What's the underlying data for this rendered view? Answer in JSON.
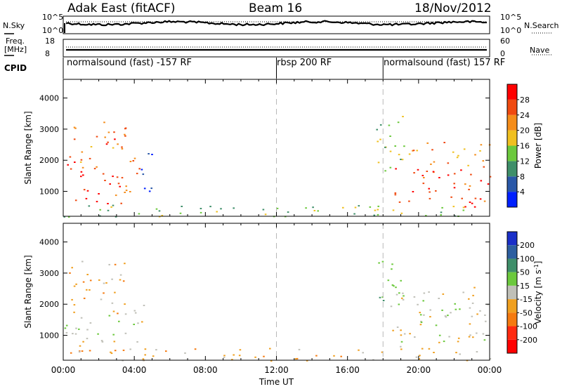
{
  "header": {
    "radar": "Adak East (fitACF)",
    "beam": "Beam 16",
    "date": "18/Nov/2012"
  },
  "noise_panel": {
    "left_label": "N.Sky",
    "right_label": "N.Search",
    "left_ticks": [
      "10^5",
      "10^0"
    ],
    "right_ticks": [
      "10^5",
      "10^0"
    ]
  },
  "freq_panel": {
    "left_label_top": "Freq.",
    "left_label_bottom": "[MHz]",
    "right_label": "Nave",
    "left_ticks": [
      "18",
      "8"
    ],
    "right_ticks": [
      "60",
      "0"
    ]
  },
  "cpid": {
    "label": "CPID",
    "modes": [
      {
        "name": "normalsound (fast) -157 RF",
        "start_hour": 0
      },
      {
        "name": "rbsp 200 RF",
        "start_hour": 12
      },
      {
        "name": "normalsound (fast) 157 RF",
        "start_hour": 18
      }
    ]
  },
  "chart_data": [
    {
      "type": "heatmap",
      "parameter": "power",
      "ylabel": "Slant Range [km]",
      "xlim_hours": [
        0,
        24
      ],
      "ylim": [
        200,
        4600
      ],
      "y_ticks": [
        1000,
        2000,
        3000,
        4000
      ],
      "colorbar": {
        "label": "Power [dB]",
        "ticks": [
          4,
          8,
          12,
          16,
          20,
          24,
          28
        ],
        "colors": [
          "#0020ff",
          "#2a58a8",
          "#3f8f6a",
          "#6cc93d",
          "#f0c020",
          "#f58d1a",
          "#f04a10",
          "#ff0000"
        ]
      },
      "regions": [
        {
          "t0": 0.0,
          "t1": 3.3,
          "r0": 600,
          "r1": 1700,
          "value": 28
        },
        {
          "t0": 0.2,
          "t1": 3.5,
          "r0": 1700,
          "r1": 3400,
          "value": 24
        },
        {
          "t0": 3.4,
          "t1": 4.6,
          "r0": 800,
          "r1": 2200,
          "value": 26
        },
        {
          "t0": 4.2,
          "t1": 5.0,
          "r0": 1000,
          "r1": 2500,
          "value": 6
        },
        {
          "t0": 17.6,
          "t1": 19.2,
          "r0": 1500,
          "r1": 3500,
          "value": 14
        },
        {
          "t0": 18.5,
          "t1": 24.0,
          "r0": 500,
          "r1": 1800,
          "value": 28
        },
        {
          "t0": 19.0,
          "t1": 24.0,
          "r0": 1800,
          "r1": 2600,
          "value": 20
        },
        {
          "t0": 0.0,
          "t1": 24.0,
          "r0": 200,
          "r1": 600,
          "value": 14
        }
      ]
    },
    {
      "type": "heatmap",
      "parameter": "velocity",
      "ylabel": "Slant Range [km]",
      "xlabel": "Time UT",
      "xlim_hours": [
        0,
        24
      ],
      "ylim": [
        200,
        4600
      ],
      "y_ticks": [
        1000,
        2000,
        3000,
        4000
      ],
      "x_ticks": [
        "00:00",
        "04:00",
        "08:00",
        "12:00",
        "16:00",
        "20:00",
        "00:00"
      ],
      "colorbar": {
        "label": "Velocity [m s^-1]",
        "ticks": [
          200,
          100,
          50,
          15,
          -15,
          -50,
          -100,
          -200
        ],
        "colors": [
          "#1a2fc8",
          "#2d5fa0",
          "#3f8f6a",
          "#6cc93d",
          "#c0c0b8",
          "#f0a020",
          "#f57a10",
          "#ff2a10",
          "#ff0000"
        ]
      },
      "regions": [
        {
          "t0": 0.0,
          "t1": 3.3,
          "r0": 600,
          "r1": 1700,
          "value": 0
        },
        {
          "t0": 0.2,
          "t1": 3.5,
          "r0": 1700,
          "r1": 3400,
          "value": -30
        },
        {
          "t0": 3.4,
          "t1": 4.6,
          "r0": 800,
          "r1": 2200,
          "value": 0
        },
        {
          "t0": 17.6,
          "t1": 19.2,
          "r0": 1500,
          "r1": 3500,
          "value": 30
        },
        {
          "t0": 18.5,
          "t1": 24.0,
          "r0": 500,
          "r1": 1800,
          "value": 0
        },
        {
          "t0": 19.0,
          "t1": 24.0,
          "r0": 1800,
          "r1": 2600,
          "value": 0
        },
        {
          "t0": 0.0,
          "t1": 24.0,
          "r0": 200,
          "r1": 600,
          "value": -30
        }
      ]
    }
  ]
}
